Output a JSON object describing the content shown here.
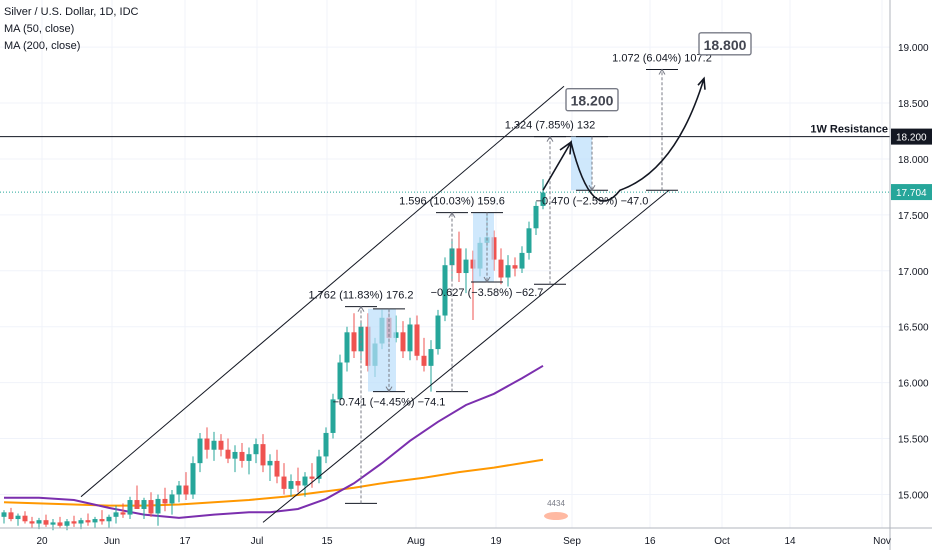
{
  "legend": {
    "title": "Silver / U.S. Dollar, 1D, IDC",
    "ma50": "MA (50, close)",
    "ma200": "MA (200, close)"
  },
  "colors": {
    "up": "#26a69a",
    "down": "#ef5350",
    "ma50": "#7b2fae",
    "ma200": "#ff9800",
    "price_line": "#26a69a",
    "resistance": "#131722",
    "range_fill": "#bbdefb"
  },
  "chart_data": {
    "type": "candlestick",
    "symbol": "Silver / U.S. Dollar, 1D, IDC",
    "x_ticks": [
      "20",
      "Jun",
      "17",
      "Jul",
      "15",
      "Aug",
      "19",
      "Sep",
      "16",
      "Oct",
      "14",
      "Nov"
    ],
    "y_ticks": [
      "15.000",
      "15.500",
      "16.000",
      "16.500",
      "17.000",
      "17.500",
      "18.000",
      "18.500",
      "19.000"
    ],
    "y_range": [
      14.7,
      19.35
    ],
    "candles": [
      {
        "o": 14.8,
        "h": 14.86,
        "l": 14.74,
        "c": 14.84
      },
      {
        "o": 14.84,
        "h": 14.88,
        "l": 14.76,
        "c": 14.78
      },
      {
        "o": 14.78,
        "h": 14.83,
        "l": 14.72,
        "c": 14.81
      },
      {
        "o": 14.81,
        "h": 14.85,
        "l": 14.74,
        "c": 14.76
      },
      {
        "o": 14.76,
        "h": 14.8,
        "l": 14.7,
        "c": 14.74
      },
      {
        "o": 14.74,
        "h": 14.79,
        "l": 14.69,
        "c": 14.77
      },
      {
        "o": 14.77,
        "h": 14.82,
        "l": 14.71,
        "c": 14.73
      },
      {
        "o": 14.73,
        "h": 14.78,
        "l": 14.68,
        "c": 14.75
      },
      {
        "o": 14.75,
        "h": 14.8,
        "l": 14.7,
        "c": 14.72
      },
      {
        "o": 14.72,
        "h": 14.78,
        "l": 14.68,
        "c": 14.76
      },
      {
        "o": 14.76,
        "h": 14.81,
        "l": 14.71,
        "c": 14.74
      },
      {
        "o": 14.74,
        "h": 14.79,
        "l": 14.69,
        "c": 14.77
      },
      {
        "o": 14.77,
        "h": 14.83,
        "l": 14.72,
        "c": 14.75
      },
      {
        "o": 14.75,
        "h": 14.8,
        "l": 14.7,
        "c": 14.78
      },
      {
        "o": 14.78,
        "h": 14.86,
        "l": 14.73,
        "c": 14.76
      },
      {
        "o": 14.76,
        "h": 14.82,
        "l": 14.7,
        "c": 14.8
      },
      {
        "o": 14.8,
        "h": 14.9,
        "l": 14.74,
        "c": 14.84
      },
      {
        "o": 14.84,
        "h": 14.92,
        "l": 14.79,
        "c": 14.82
      },
      {
        "o": 14.82,
        "h": 14.98,
        "l": 14.78,
        "c": 14.95
      },
      {
        "o": 14.95,
        "h": 15.08,
        "l": 14.9,
        "c": 14.87
      },
      {
        "o": 14.87,
        "h": 14.97,
        "l": 14.78,
        "c": 14.95
      },
      {
        "o": 14.95,
        "h": 15.02,
        "l": 14.8,
        "c": 14.83
      },
      {
        "o": 14.83,
        "h": 15.0,
        "l": 14.72,
        "c": 14.96
      },
      {
        "o": 14.96,
        "h": 15.06,
        "l": 14.85,
        "c": 14.92
      },
      {
        "o": 14.92,
        "h": 15.04,
        "l": 14.82,
        "c": 15.0
      },
      {
        "o": 15.0,
        "h": 15.12,
        "l": 14.93,
        "c": 15.08
      },
      {
        "o": 15.08,
        "h": 15.2,
        "l": 14.95,
        "c": 15.0
      },
      {
        "o": 15.0,
        "h": 15.34,
        "l": 14.96,
        "c": 15.28
      },
      {
        "o": 15.28,
        "h": 15.55,
        "l": 15.2,
        "c": 15.5
      },
      {
        "o": 15.5,
        "h": 15.6,
        "l": 15.32,
        "c": 15.4
      },
      {
        "o": 15.4,
        "h": 15.56,
        "l": 15.3,
        "c": 15.48
      },
      {
        "o": 15.48,
        "h": 15.54,
        "l": 15.34,
        "c": 15.4
      },
      {
        "o": 15.4,
        "h": 15.5,
        "l": 15.28,
        "c": 15.32
      },
      {
        "o": 15.32,
        "h": 15.44,
        "l": 15.2,
        "c": 15.38
      },
      {
        "o": 15.38,
        "h": 15.46,
        "l": 15.24,
        "c": 15.3
      },
      {
        "o": 15.3,
        "h": 15.42,
        "l": 15.18,
        "c": 15.36
      },
      {
        "o": 15.36,
        "h": 15.5,
        "l": 15.28,
        "c": 15.45
      },
      {
        "o": 15.45,
        "h": 15.54,
        "l": 15.2,
        "c": 15.26
      },
      {
        "o": 15.26,
        "h": 15.36,
        "l": 15.12,
        "c": 15.3
      },
      {
        "o": 15.3,
        "h": 15.4,
        "l": 15.1,
        "c": 15.16
      },
      {
        "o": 15.16,
        "h": 15.28,
        "l": 15.0,
        "c": 15.05
      },
      {
        "o": 15.05,
        "h": 15.18,
        "l": 14.98,
        "c": 15.12
      },
      {
        "o": 15.12,
        "h": 15.24,
        "l": 15.02,
        "c": 15.08
      },
      {
        "o": 15.08,
        "h": 15.2,
        "l": 14.98,
        "c": 15.16
      },
      {
        "o": 15.16,
        "h": 15.28,
        "l": 15.06,
        "c": 15.14
      },
      {
        "o": 15.14,
        "h": 15.4,
        "l": 15.1,
        "c": 15.34
      },
      {
        "o": 15.34,
        "h": 15.6,
        "l": 15.28,
        "c": 15.55
      },
      {
        "o": 15.55,
        "h": 15.9,
        "l": 15.5,
        "c": 15.85
      },
      {
        "o": 15.85,
        "h": 16.25,
        "l": 15.8,
        "c": 16.18
      },
      {
        "o": 16.18,
        "h": 16.5,
        "l": 16.1,
        "c": 16.45
      },
      {
        "o": 16.45,
        "h": 16.62,
        "l": 16.22,
        "c": 16.28
      },
      {
        "o": 16.28,
        "h": 16.55,
        "l": 16.2,
        "c": 16.5
      },
      {
        "o": 16.5,
        "h": 16.62,
        "l": 16.1,
        "c": 16.15
      },
      {
        "o": 16.15,
        "h": 16.4,
        "l": 16.05,
        "c": 16.35
      },
      {
        "o": 16.35,
        "h": 16.65,
        "l": 16.3,
        "c": 16.58
      },
      {
        "o": 16.58,
        "h": 16.66,
        "l": 16.32,
        "c": 16.4
      },
      {
        "o": 16.4,
        "h": 16.6,
        "l": 16.36,
        "c": 16.45
      },
      {
        "o": 16.45,
        "h": 16.55,
        "l": 16.22,
        "c": 16.28
      },
      {
        "o": 16.28,
        "h": 16.58,
        "l": 16.2,
        "c": 16.52
      },
      {
        "o": 16.52,
        "h": 16.6,
        "l": 16.2,
        "c": 16.24
      },
      {
        "o": 16.24,
        "h": 16.4,
        "l": 16.1,
        "c": 16.15
      },
      {
        "o": 16.15,
        "h": 16.38,
        "l": 15.92,
        "c": 16.3
      },
      {
        "o": 16.3,
        "h": 16.65,
        "l": 16.25,
        "c": 16.6
      },
      {
        "o": 16.6,
        "h": 17.12,
        "l": 16.55,
        "c": 17.05
      },
      {
        "o": 17.05,
        "h": 17.28,
        "l": 16.92,
        "c": 17.2
      },
      {
        "o": 17.2,
        "h": 17.35,
        "l": 16.9,
        "c": 16.98
      },
      {
        "o": 16.98,
        "h": 17.2,
        "l": 16.8,
        "c": 17.1
      },
      {
        "o": 17.1,
        "h": 17.18,
        "l": 16.56,
        "c": 17.02
      },
      {
        "o": 17.02,
        "h": 17.3,
        "l": 16.95,
        "c": 17.25
      },
      {
        "o": 17.25,
        "h": 17.52,
        "l": 17.18,
        "c": 17.3
      },
      {
        "o": 17.3,
        "h": 17.36,
        "l": 17.0,
        "c": 17.1
      },
      {
        "o": 17.1,
        "h": 17.2,
        "l": 16.88,
        "c": 16.94
      },
      {
        "o": 16.94,
        "h": 17.14,
        "l": 16.86,
        "c": 17.05
      },
      {
        "o": 17.05,
        "h": 17.12,
        "l": 16.95,
        "c": 17.02
      },
      {
        "o": 17.02,
        "h": 17.22,
        "l": 16.98,
        "c": 17.16
      },
      {
        "o": 17.16,
        "h": 17.44,
        "l": 17.1,
        "c": 17.38
      },
      {
        "o": 17.38,
        "h": 17.62,
        "l": 17.32,
        "c": 17.58
      },
      {
        "o": 17.58,
        "h": 17.82,
        "l": 17.55,
        "c": 17.7
      }
    ],
    "ma200": [
      [
        0,
        14.93
      ],
      [
        5,
        14.92
      ],
      [
        10,
        14.91
      ],
      [
        15,
        14.9
      ],
      [
        20,
        14.9
      ],
      [
        25,
        14.91
      ],
      [
        30,
        14.93
      ],
      [
        35,
        14.95
      ],
      [
        40,
        14.98
      ],
      [
        45,
        15.02
      ],
      [
        50,
        15.06
      ],
      [
        55,
        15.11
      ],
      [
        60,
        15.15
      ],
      [
        65,
        15.2
      ],
      [
        70,
        15.24
      ],
      [
        75,
        15.29
      ],
      [
        77,
        15.31
      ]
    ],
    "ma50": [
      [
        0,
        14.97
      ],
      [
        5,
        14.97
      ],
      [
        10,
        14.95
      ],
      [
        15,
        14.88
      ],
      [
        20,
        14.82
      ],
      [
        25,
        14.79
      ],
      [
        30,
        14.82
      ],
      [
        35,
        14.84
      ],
      [
        38,
        14.84
      ],
      [
        42,
        14.87
      ],
      [
        46,
        14.96
      ],
      [
        50,
        15.1
      ],
      [
        54,
        15.28
      ],
      [
        58,
        15.48
      ],
      [
        62,
        15.65
      ],
      [
        66,
        15.8
      ],
      [
        70,
        15.9
      ],
      [
        74,
        16.04
      ],
      [
        77,
        16.15
      ]
    ],
    "channel": {
      "upper": [
        [
          11,
          14.98
        ],
        [
          80,
          18.65
        ]
      ],
      "lower": [
        [
          37,
          14.75
        ],
        [
          95,
          17.72
        ]
      ]
    },
    "resistance": {
      "label": "1W Resistance",
      "value": 18.2
    },
    "last_price": 17.704,
    "measurements": [
      {
        "text": "1.762 (11.83%) 176.2",
        "bar": 51,
        "from": 14.92,
        "to": 16.68
      },
      {
        "text": "1.596 (10.03%) 159.6",
        "bar": 64,
        "from": 15.92,
        "to": 17.52
      },
      {
        "text": "1.324 (7.85%) 132",
        "bar": 78,
        "from": 16.88,
        "to": 18.2
      },
      {
        "text": "1.072 (6.04%) 107.2",
        "bar": 94,
        "from": 17.72,
        "to": 18.8
      },
      {
        "text": "−0.741 (−4.45%) −74.1",
        "bar": 55,
        "from": 16.66,
        "to": 15.92
      },
      {
        "text": "−0.627 (−3.58%) −62.7",
        "bar": 69,
        "from": 17.52,
        "to": 16.9
      },
      {
        "text": "−0.470 (−2.59%) −47.0",
        "bar": 84,
        "from": 18.2,
        "to": 17.72
      }
    ],
    "targets": [
      {
        "label": "18.200",
        "value": 18.2
      },
      {
        "label": "18.800",
        "value": 18.8
      }
    ],
    "watermark": "4434"
  }
}
